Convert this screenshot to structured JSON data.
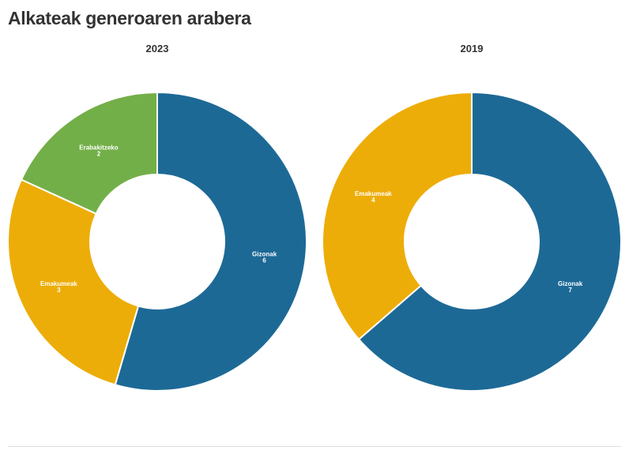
{
  "header": {
    "title": "Alkateak generoaren arabera"
  },
  "chart_data": [
    {
      "type": "pie",
      "title": "2023",
      "slices": [
        {
          "label": "Gizonak",
          "value": 6,
          "color": "#1d6996"
        },
        {
          "label": "Emakumeak",
          "value": 3,
          "color": "#edad08"
        },
        {
          "label": "Erabakitzeko",
          "value": 2,
          "color": "#73af48"
        }
      ]
    },
    {
      "type": "pie",
      "title": "2019",
      "slices": [
        {
          "label": "Gizonak",
          "value": 7,
          "color": "#1d6996"
        },
        {
          "label": "Emakumeak",
          "value": 4,
          "color": "#edad08"
        }
      ]
    }
  ]
}
